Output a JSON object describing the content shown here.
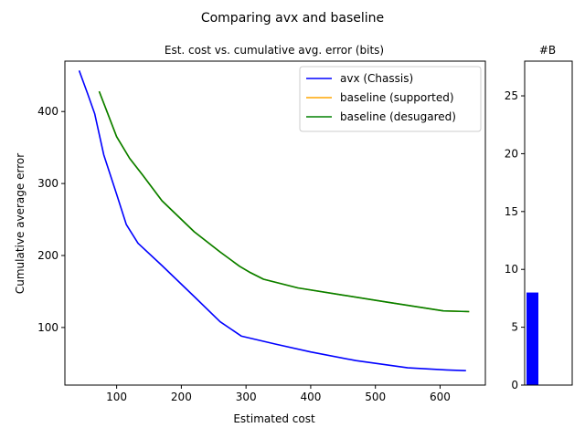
{
  "figure": {
    "suptitle": "Comparing avx and baseline"
  },
  "chart_data": [
    {
      "type": "line",
      "title": "Est. cost vs. cumulative avg. error (bits)",
      "xlabel": "Estimated cost",
      "ylabel": "Cumulative average error",
      "xlim": [
        20,
        670
      ],
      "ylim": [
        20,
        470
      ],
      "xticks": [
        100,
        200,
        300,
        400,
        500,
        600
      ],
      "yticks": [
        100,
        200,
        300,
        400
      ],
      "legend_position": "top-right",
      "series": [
        {
          "name": "avx (Chassis)",
          "color": "#0000ff",
          "points": [
            [
              42,
              457
            ],
            [
              55,
              425
            ],
            [
              66,
              397
            ],
            [
              80,
              340
            ],
            [
              100,
              285
            ],
            [
              115,
              243
            ],
            [
              133,
              217
            ],
            [
              170,
              186
            ],
            [
              220,
              143
            ],
            [
              260,
              108
            ],
            [
              293,
              88
            ],
            [
              345,
              77
            ],
            [
              400,
              66
            ],
            [
              470,
              54
            ],
            [
              550,
              44
            ],
            [
              610,
              41
            ],
            [
              640,
              40
            ]
          ]
        },
        {
          "name": "baseline (supported)",
          "color": "#ffa500",
          "points": [
            [
              73,
              428
            ],
            [
              85,
              400
            ],
            [
              100,
              365
            ],
            [
              120,
              335
            ],
            [
              140,
              312
            ],
            [
              170,
              276
            ],
            [
              220,
              233
            ],
            [
              260,
              205
            ],
            [
              290,
              185
            ],
            [
              305,
              177
            ],
            [
              327,
              167
            ],
            [
              380,
              155
            ],
            [
              450,
              145
            ],
            [
              520,
              135
            ],
            [
              605,
              123
            ],
            [
              645,
              122
            ]
          ]
        },
        {
          "name": "baseline (desugared)",
          "color": "#008000",
          "points": [
            [
              73,
              428
            ],
            [
              85,
              400
            ],
            [
              100,
              365
            ],
            [
              120,
              335
            ],
            [
              140,
              312
            ],
            [
              170,
              276
            ],
            [
              220,
              233
            ],
            [
              260,
              205
            ],
            [
              290,
              185
            ],
            [
              305,
              177
            ],
            [
              327,
              167
            ],
            [
              380,
              155
            ],
            [
              450,
              145
            ],
            [
              520,
              135
            ],
            [
              605,
              123
            ],
            [
              645,
              122
            ]
          ]
        }
      ]
    },
    {
      "type": "bar",
      "title": "#B",
      "ylim": [
        0,
        28
      ],
      "yticks": [
        0,
        5,
        10,
        15,
        20,
        25
      ],
      "bars": [
        {
          "value": 8,
          "color": "#0000ff"
        }
      ]
    }
  ]
}
